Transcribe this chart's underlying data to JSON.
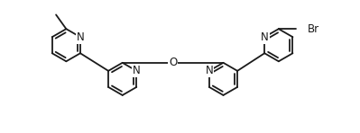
{
  "bg_color": "#ffffff",
  "line_color": "#1a1a1a",
  "line_width": 1.3,
  "font_size": 8.5,
  "dpi": 100,
  "fig_width": 3.99,
  "fig_height": 1.48,
  "xlim": [
    0,
    10.5
  ],
  "ylim": [
    0,
    3.9
  ]
}
